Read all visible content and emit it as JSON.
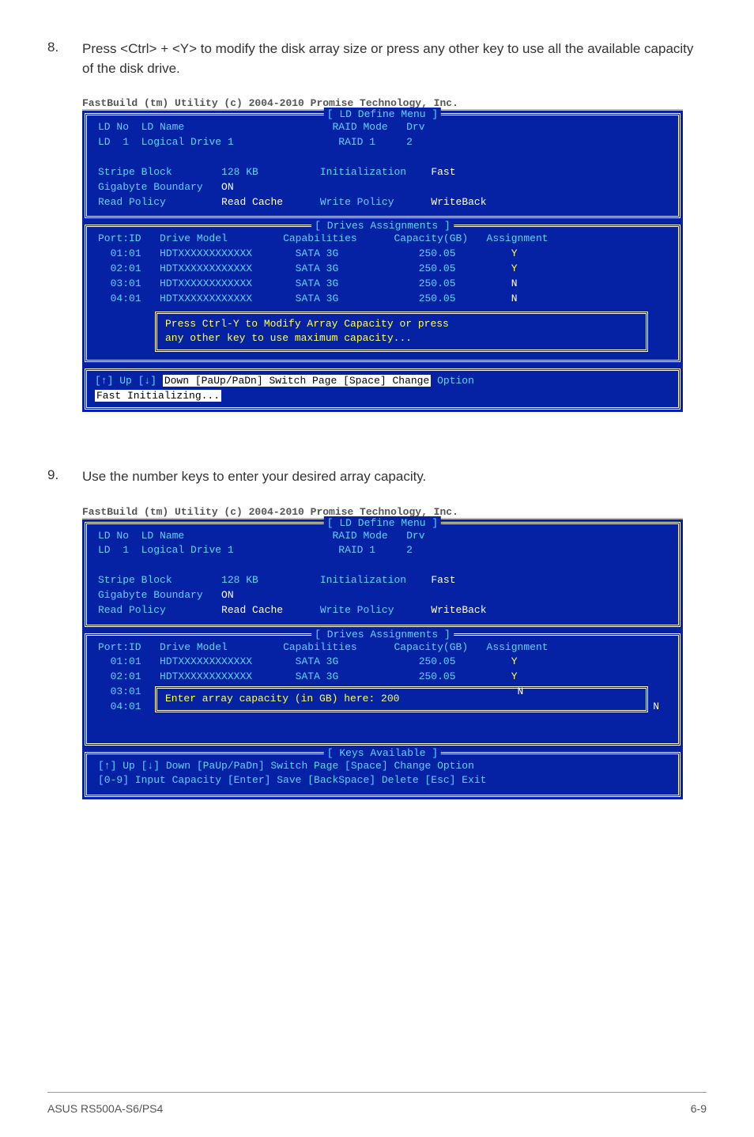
{
  "step8": {
    "num": "8.",
    "text": "Press <Ctrl> + <Y> to modify the disk array size or press any other key to use all the available capacity of the disk drive."
  },
  "step9": {
    "num": "9.",
    "text": "Use the number keys to enter your desired array capacity."
  },
  "fbHeader": "FastBuild (tm) Utility (c) 2004-2010 Promise Technology, Inc.",
  "menuTitle": "[ LD Define Menu ]",
  "ld": {
    "noLabel": "LD No",
    "nameLabel": "LD Name",
    "modeLabel": "RAID Mode",
    "drvLabel": "Drv",
    "no": "LD  1",
    "name": "Logical Drive 1",
    "mode": "RAID 1",
    "drv": "2",
    "stripeLabel": "Stripe Block",
    "stripe": "128 KB",
    "initLabel": "Initialization",
    "init": "Fast",
    "gigLabel": "Gigabyte Boundary",
    "gig": "ON",
    "readPolLabel": "Read Policy",
    "readCacheLabel": "Read Cache",
    "writePolLabel": "Write Policy",
    "writePol": "WriteBack"
  },
  "drivesTitle": "[ Drives Assignments ]",
  "drivesHeader": {
    "port": "Port:ID",
    "model": "Drive Model",
    "cap": "Capabilities",
    "capacity": "Capacity(GB)",
    "assign": "Assignment"
  },
  "drives": [
    {
      "port": "01:01",
      "model": "HDTXXXXXXXXXXXX",
      "cap": "SATA 3G",
      "capacity": "250.05",
      "assign": "Y"
    },
    {
      "port": "02:01",
      "model": "HDTXXXXXXXXXXXX",
      "cap": "SATA 3G",
      "capacity": "250.05",
      "assign": "Y"
    },
    {
      "port": "03:01",
      "model": "HDTXXXXXXXXXXXX",
      "cap": "SATA 3G",
      "capacity": "250.05",
      "assign": "N"
    },
    {
      "port": "04:01",
      "model": "HDTXXXXXXXXXXXX",
      "cap": "SATA 3G",
      "capacity": "250.05",
      "assign": "N"
    }
  ],
  "popup1a": "Press Ctrl-Y to Modify Array Capacity or press",
  "popup1b": "any other key to use maximum capacity...",
  "popup2": "Enter array capacity (in GB) here: 200",
  "navPrefix": "[↑] Up [↓] ",
  "navMid": "Down [PaUp/PaDn] Switch Page [Space] Change",
  "navSuffix": " Option",
  "fastInit": "Fast Initializing...",
  "keysTitle": "[ Keys Available ]",
  "nav2a": "[↑] Up [↓] Down [PaUp/PaDn] Switch Page [Space] Change Option",
  "nav2b": "[0-9] Input Capacity [Enter] Save [BackSpace] Delete [Esc] Exit",
  "footerLeft": "ASUS RS500A-S6/PS4",
  "footerRight": "6-9"
}
